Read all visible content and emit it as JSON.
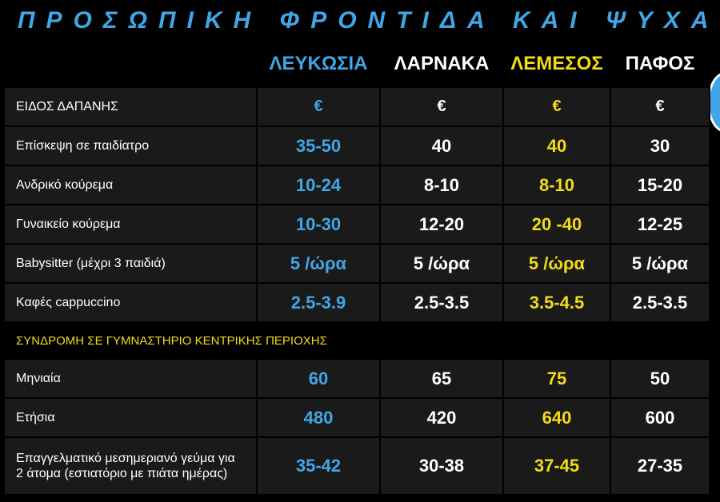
{
  "title": "ΠΡΟΣΩΠΙΚΗ ΦΡΟΝΤΙΔΑ ΚΑΙ ΨΥΧΑΓΩΓΙΑ",
  "columns": [
    "ΛΕΥΚΩΣΙΑ",
    "ΛΑΡΝΑΚΑ",
    "ΛΕΜΕΣΟΣ",
    "ΠΑΦΟΣ"
  ],
  "column_colors": [
    "#41a6e6",
    "#ffffff",
    "#f2dc16",
    "#ffffff"
  ],
  "rows": [
    {
      "label": "ΕΙΔΟΣ ΔΑΠΑΝΗΣ",
      "values": [
        "€",
        "€",
        "€",
        "€"
      ]
    },
    {
      "label": "Επίσκεψη σε παιδίατρο",
      "values": [
        "35-50",
        "40",
        "40",
        "30"
      ]
    },
    {
      "label": "Ανδρικό κούρεμα",
      "values": [
        "10-24",
        "8-10",
        "8-10",
        "15-20"
      ]
    },
    {
      "label": "Γυναικείο κούρεμα",
      "values": [
        "10-30",
        "12-20",
        "20 -40",
        "12-25"
      ]
    },
    {
      "label": "Babysitter (μέχρι 3 παιδιά)",
      "values": [
        "5 /ώρα",
        "5 /ώρα",
        "5 /ώρα",
        "5 /ώρα"
      ]
    },
    {
      "label": "Καφές cappuccino",
      "values": [
        "2.5-3.9",
        "2.5-3.5",
        "3.5-4.5",
        "2.5-3.5"
      ]
    }
  ],
  "section_title": "ΣΥΝΔΡΟΜΗ ΣΕ ΓΥΜΝΑΣΤΗΡΙΟ ΚΕΝΤΡΙΚΗΣ ΠΕΡΙΟΧΗΣ",
  "rows2": [
    {
      "label": "Μηνιαία",
      "values": [
        "60",
        "65",
        "75",
        "50"
      ]
    },
    {
      "label": "Ετήσια",
      "values": [
        "480",
        "420",
        "640",
        "600"
      ]
    }
  ],
  "lunch": {
    "label_line1": "Επαγγελματικό μεσημεριανό γεύμα για",
    "label_line2": "2 άτομα (εστιατόριο με πιάτα ημέρας)",
    "values": [
      "35-42",
      "30-38",
      "37-45",
      "27-35"
    ]
  }
}
